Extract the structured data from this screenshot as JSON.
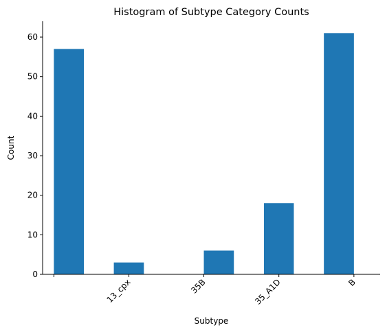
{
  "chart_data": {
    "type": "bar",
    "title": "Histogram of Subtype Category Counts",
    "xlabel": "Subtype",
    "ylabel": "Count",
    "ylim": [
      0,
      64
    ],
    "yticks": [
      0,
      10,
      20,
      30,
      40,
      50,
      60
    ],
    "xticks": [
      0,
      0.667,
      1.333,
      2,
      2.667
    ],
    "xtick_labels": [
      "",
      "13_cpx",
      "35B",
      "35_A1D",
      "B"
    ],
    "xlim": [
      -0.1,
      2.9
    ],
    "bars": [
      {
        "x_start": 0.0,
        "x_end": 0.267,
        "value": 57
      },
      {
        "x_start": 0.533,
        "x_end": 0.8,
        "value": 3
      },
      {
        "x_start": 1.333,
        "x_end": 1.6,
        "value": 6
      },
      {
        "x_start": 1.867,
        "x_end": 2.133,
        "value": 18
      },
      {
        "x_start": 2.4,
        "x_end": 2.667,
        "value": 61
      }
    ],
    "bar_color": "#1f77b4",
    "grid": false,
    "spines": [
      "left",
      "bottom"
    ]
  }
}
